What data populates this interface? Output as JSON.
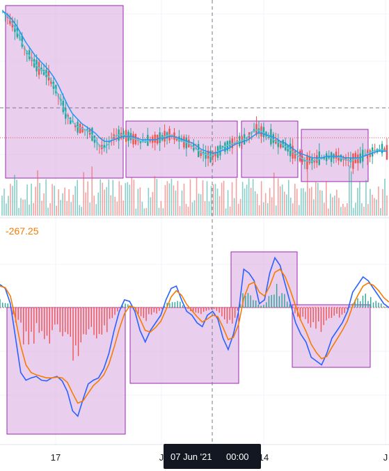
{
  "chart_data": [
    {
      "type": "line",
      "panel": "price",
      "series": [
        {
          "values": [
            1.0,
            0.97,
            0.93,
            0.88,
            0.82,
            0.76,
            0.72,
            0.68,
            0.65,
            0.63,
            0.6,
            0.55,
            0.49,
            0.42,
            0.36,
            0.33,
            0.3,
            0.29,
            0.28,
            0.26,
            0.22,
            0.18,
            0.17,
            0.2,
            0.24,
            0.25,
            0.25,
            0.24,
            0.23,
            0.22,
            0.21,
            0.21,
            0.22,
            0.22,
            0.23,
            0.24,
            0.25,
            0.24,
            0.22,
            0.21,
            0.2,
            0.18,
            0.16,
            0.14,
            0.13,
            0.12,
            0.14,
            0.16,
            0.18,
            0.19,
            0.2,
            0.21,
            0.22,
            0.24,
            0.27,
            0.28,
            0.27,
            0.25,
            0.23,
            0.21,
            0.2,
            0.18,
            0.16,
            0.14,
            0.12,
            0.1,
            0.09,
            0.09,
            0.1,
            0.11,
            0.12,
            0.12,
            0.12,
            0.11,
            0.1,
            0.09,
            0.1,
            0.11,
            0.12,
            0.14,
            0.15,
            0.16,
            0.16,
            0.15
          ]
        },
        {
          "values": [
            1.0,
            0.98,
            0.95,
            0.91,
            0.86,
            0.81,
            0.77,
            0.73,
            0.7,
            0.67,
            0.64,
            0.6,
            0.55,
            0.49,
            0.43,
            0.38,
            0.35,
            0.32,
            0.3,
            0.28,
            0.26,
            0.23,
            0.21,
            0.21,
            0.22,
            0.23,
            0.24,
            0.24,
            0.24,
            0.23,
            0.22,
            0.22,
            0.22,
            0.22,
            0.23,
            0.23,
            0.24,
            0.24,
            0.23,
            0.22,
            0.21,
            0.2,
            0.18,
            0.16,
            0.15,
            0.14,
            0.14,
            0.15,
            0.16,
            0.17,
            0.19,
            0.2,
            0.21,
            0.22,
            0.24,
            0.26,
            0.26,
            0.25,
            0.24,
            0.23,
            0.21,
            0.2,
            0.18,
            0.16,
            0.14,
            0.13,
            0.12,
            0.11,
            0.11,
            0.11,
            0.12,
            0.12,
            0.12,
            0.12,
            0.11,
            0.11,
            0.11,
            0.11,
            0.12,
            0.13,
            0.14,
            0.15,
            0.15,
            0.15
          ]
        }
      ]
    },
    {
      "type": "line",
      "panel": "oscillator",
      "value_label": "-267.25",
      "series": [
        {
          "values": [
            0.3,
            0.25,
            0.05,
            -0.4,
            -0.85,
            -0.95,
            -0.92,
            -0.9,
            -0.95,
            -0.96,
            -0.92,
            -0.9,
            -0.96,
            -1.1,
            -1.35,
            -1.42,
            -1.2,
            -1.0,
            -0.95,
            -0.92,
            -0.8,
            -0.6,
            -0.3,
            -0.05,
            0.1,
            0.08,
            -0.05,
            -0.3,
            -0.45,
            -0.3,
            -0.2,
            -0.1,
            0.1,
            0.25,
            0.28,
            0.1,
            -0.05,
            -0.1,
            -0.2,
            -0.25,
            -0.1,
            -0.05,
            -0.15,
            -0.4,
            -0.55,
            -0.35,
            -0.05,
            0.5,
            0.45,
            0.35,
            0.05,
            0.1,
            0.45,
            0.65,
            0.55,
            0.3,
            0.05,
            -0.2,
            -0.35,
            -0.45,
            -0.65,
            -0.7,
            -0.75,
            -0.6,
            -0.4,
            -0.3,
            -0.2,
            -0.05,
            0.2,
            0.3,
            0.4,
            0.35,
            0.25,
            0.15,
            0.05,
            0.0
          ]
        },
        {
          "values": [
            0.28,
            0.26,
            0.15,
            -0.15,
            -0.5,
            -0.75,
            -0.85,
            -0.88,
            -0.9,
            -0.92,
            -0.92,
            -0.91,
            -0.92,
            -0.98,
            -1.12,
            -1.25,
            -1.22,
            -1.12,
            -1.02,
            -0.96,
            -0.88,
            -0.74,
            -0.52,
            -0.28,
            -0.08,
            0.02,
            0.0,
            -0.15,
            -0.3,
            -0.32,
            -0.26,
            -0.18,
            -0.03,
            0.14,
            0.22,
            0.16,
            0.04,
            -0.04,
            -0.12,
            -0.19,
            -0.15,
            -0.1,
            -0.12,
            -0.26,
            -0.42,
            -0.39,
            -0.22,
            0.12,
            0.3,
            0.33,
            0.2,
            0.15,
            0.28,
            0.46,
            0.5,
            0.4,
            0.22,
            0.02,
            -0.17,
            -0.31,
            -0.48,
            -0.59,
            -0.67,
            -0.64,
            -0.52,
            -0.41,
            -0.3,
            -0.17,
            0.02,
            0.16,
            0.28,
            0.32,
            0.29,
            0.22,
            0.13,
            0.07
          ]
        }
      ]
    }
  ],
  "axis": {
    "x_ticks": [
      "17",
      "J",
      "14",
      "J"
    ]
  },
  "crosshair": {
    "date": "07 Jun '21",
    "time": "00:00"
  },
  "colors": {
    "up": "#26a69a",
    "down": "#ef5350",
    "fast_line": "#2962ff",
    "slow_line": "#f57c00",
    "ma_line": "#5ec8d8",
    "highlight_fill": "#e1bee7",
    "highlight_stroke": "#9c27b0",
    "crosshair": "#787b86",
    "label_bg": "#131722"
  }
}
